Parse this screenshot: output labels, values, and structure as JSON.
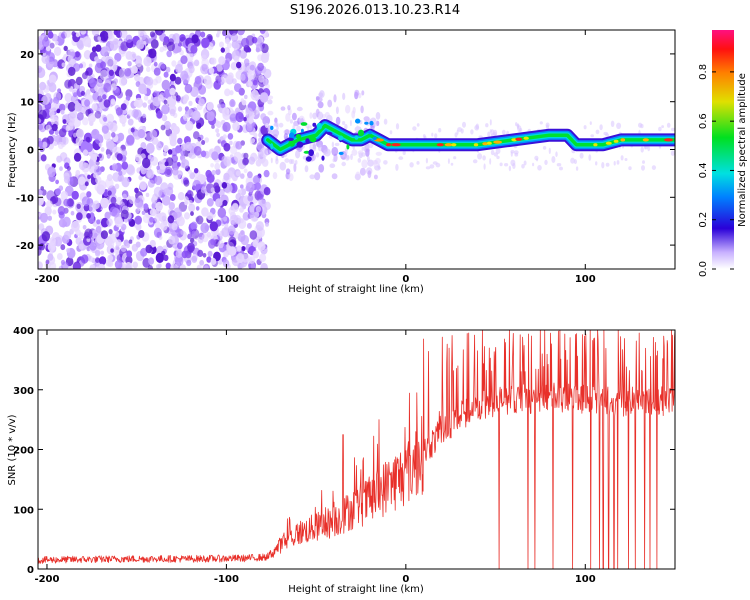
{
  "title": "S196.2026.013.10.23.R14",
  "colors": {
    "snr_line": "#e8302a",
    "spectrum_noise": "#8a3ff0",
    "spectrum_faint": "#d8c0ff",
    "axis": "#000000",
    "background": "#ffffff"
  },
  "chart_data": [
    {
      "type": "heatmap",
      "name": "spectrogram",
      "xlabel": "Height of straight line (km)",
      "ylabel": "Frequency (Hz)",
      "xlim": [
        -205,
        150
      ],
      "ylim": [
        -25,
        25
      ],
      "xticks": [
        -200,
        -100,
        0,
        100
      ],
      "xtick_labels": [
        "-200",
        "-100",
        "0",
        "100"
      ],
      "yticks": [
        -20,
        -10,
        0,
        10,
        20
      ],
      "ytick_labels": [
        "-20",
        "-10",
        "0",
        "10",
        "20"
      ],
      "noise_region_x": [
        -205,
        -77
      ],
      "transition_x": [
        -77,
        -15
      ],
      "signal_ridge": {
        "x": [
          -77,
          -70,
          -60,
          -50,
          -45,
          -40,
          -35,
          -30,
          -25,
          -20,
          -15,
          -10,
          -5,
          0,
          10,
          20,
          40,
          60,
          80,
          90,
          95,
          100,
          110,
          120,
          140,
          150
        ],
        "y": [
          2,
          0,
          2,
          3,
          5,
          4,
          3,
          2,
          2,
          3,
          2,
          1,
          1,
          1,
          1,
          1,
          1,
          2,
          3,
          3,
          1,
          1,
          1,
          2,
          2,
          2
        ]
      },
      "colorbar": {
        "label": "Normalized spectral amplitude",
        "range": [
          0.0,
          0.97
        ],
        "ticks": [
          0.0,
          0.2,
          0.4,
          0.6,
          0.8
        ],
        "tick_labels": [
          "0.0",
          "0.2",
          "0.4",
          "0.6",
          "0.8"
        ]
      }
    },
    {
      "type": "line",
      "name": "snr",
      "xlabel": "Height of straight line (km)",
      "ylabel": "SNR (10 * v/v)",
      "xlim": [
        -205,
        150
      ],
      "ylim": [
        0,
        400
      ],
      "xticks": [
        -200,
        -100,
        0,
        100
      ],
      "xtick_labels": [
        "-200",
        "-100",
        "0",
        "100"
      ],
      "yticks": [
        0,
        100,
        200,
        300,
        400
      ],
      "ytick_labels": [
        "0",
        "100",
        "200",
        "300",
        "400"
      ],
      "series": [
        {
          "name": "SNR",
          "x": [
            -205,
            -180,
            -150,
            -120,
            -90,
            -77,
            -70,
            -60,
            -50,
            -40,
            -30,
            -20,
            -10,
            0,
            10,
            20,
            30,
            40,
            50,
            60,
            80,
            100,
            120,
            140,
            150
          ],
          "y": [
            15,
            16,
            17,
            17,
            18,
            20,
            40,
            60,
            70,
            80,
            100,
            115,
            140,
            160,
            195,
            230,
            255,
            270,
            280,
            285,
            285,
            285,
            280,
            280,
            280
          ]
        }
      ],
      "spikes_upper": [
        {
          "x": -35,
          "y": 225
        },
        {
          "x": -15,
          "y": 250
        },
        {
          "x": 10,
          "y": 385
        },
        {
          "x": 35,
          "y": 395
        },
        {
          "x": 55,
          "y": 385
        },
        {
          "x": 70,
          "y": 390
        },
        {
          "x": 85,
          "y": 398
        },
        {
          "x": 110,
          "y": 400
        },
        {
          "x": 130,
          "y": 395
        },
        {
          "x": 148,
          "y": 400
        }
      ],
      "dropouts_x": [
        52,
        68,
        72,
        82,
        93,
        103,
        108,
        110,
        113,
        116,
        118,
        124,
        128,
        133,
        136,
        140
      ]
    }
  ]
}
